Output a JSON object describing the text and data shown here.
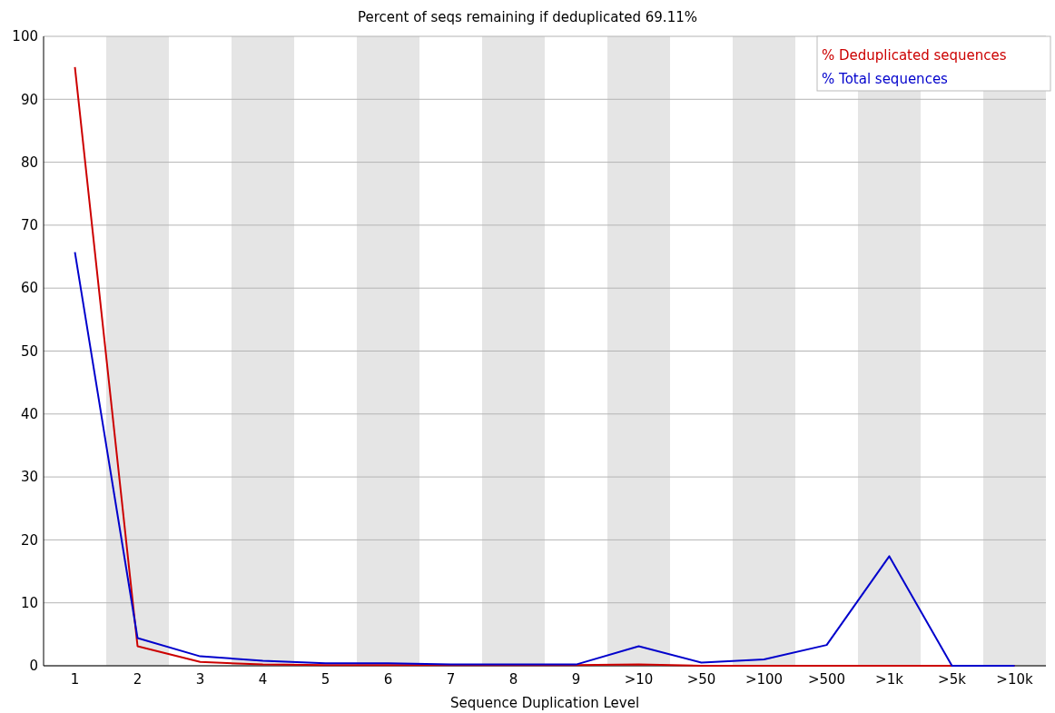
{
  "chart_data": {
    "type": "line",
    "title": "Percent of seqs remaining if deduplicated 69.11%",
    "xlabel": "Sequence Duplication Level",
    "categories": [
      "1",
      "2",
      "3",
      "4",
      "5",
      "6",
      "7",
      "8",
      "9",
      ">10",
      ">50",
      ">100",
      ">500",
      ">1k",
      ">5k",
      ">10k"
    ],
    "series": [
      {
        "name": "% Deduplicated sequences",
        "color": "#cc0000",
        "values": [
          95.1,
          3.1,
          0.6,
          0.2,
          0.1,
          0.1,
          0.1,
          0.1,
          0.1,
          0.2,
          0,
          0,
          0,
          0,
          0,
          0
        ]
      },
      {
        "name": "% Total sequences",
        "color": "#0000cc",
        "values": [
          65.7,
          4.4,
          1.5,
          0.8,
          0.4,
          0.4,
          0.2,
          0.2,
          0.2,
          3.1,
          0.5,
          1.0,
          3.3,
          17.4,
          0,
          0
        ]
      }
    ],
    "ylim": [
      0,
      100
    ],
    "yticks": [
      0,
      10,
      20,
      30,
      40,
      50,
      60,
      70,
      80,
      90,
      100
    ],
    "grid": "y",
    "legend": "top right",
    "marker": "none",
    "line_style": "solid",
    "bands": [
      {
        "axis": "x",
        "from": "2",
        "to": "2",
        "color": "#e5e5e5"
      },
      {
        "axis": "x",
        "from": "4",
        "to": "4",
        "color": "#e5e5e5"
      },
      {
        "axis": "x",
        "from": "6",
        "to": "6",
        "color": "#e5e5e5"
      },
      {
        "axis": "x",
        "from": "8",
        "to": "8",
        "color": "#e5e5e5"
      },
      {
        "axis": "x",
        "from": ">10",
        "to": ">10",
        "color": "#e5e5e5"
      },
      {
        "axis": "x",
        "from": ">100",
        "to": ">100",
        "color": "#e5e5e5"
      },
      {
        "axis": "x",
        "from": ">1k",
        "to": ">1k",
        "color": "#e5e5e5"
      },
      {
        "axis": "x",
        "from": ">10k",
        "to": ">10k",
        "color": "#e5e5e5"
      }
    ]
  }
}
